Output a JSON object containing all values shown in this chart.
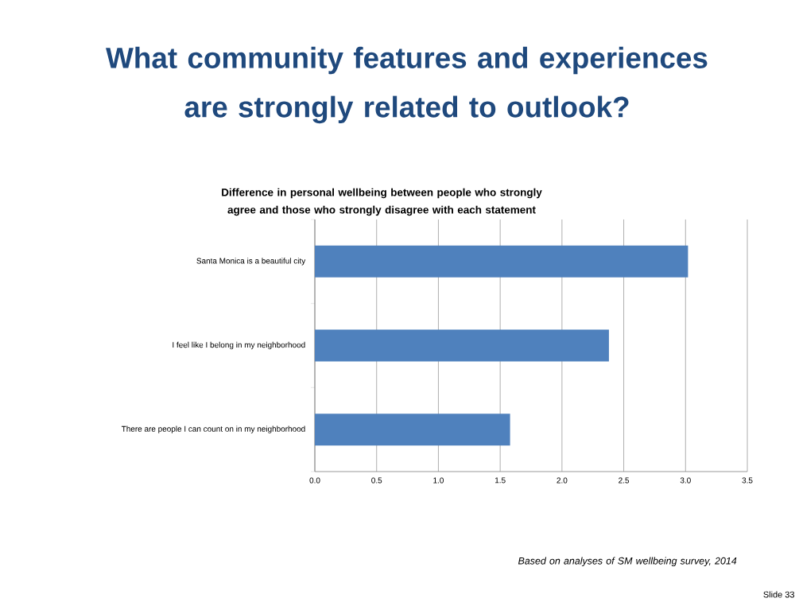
{
  "chart_data": {
    "type": "bar",
    "orientation": "horizontal",
    "title": "What community features and experiences are strongly related to outlook?",
    "subtitle": "Difference in personal wellbeing between people who strongly agree and those who strongly disagree with each statement",
    "categories": [
      "Santa Monica is a beautiful city",
      "I feel like I belong in my neighborhood",
      "There are people I can count on in my neighborhood"
    ],
    "values": [
      3.02,
      2.38,
      1.58
    ],
    "color": "#4f81bd",
    "xlim": [
      0,
      3.5
    ],
    "xticks": [
      {
        "value": 0,
        "label": "0.0"
      },
      {
        "value": 0.5,
        "label": "0.5"
      },
      {
        "value": 1,
        "label": "1.0"
      },
      {
        "value": 1.5,
        "label": "1.5"
      },
      {
        "value": 2,
        "label": "2.0"
      },
      {
        "value": 2.5,
        "label": "2.5"
      },
      {
        "value": 3,
        "label": "3.0"
      },
      {
        "value": 3.5,
        "label": "3.5"
      }
    ],
    "grid": "x",
    "annotations": [
      "*Based on analyses of SM wellbeing survey, 2014*",
      "Slide 33"
    ]
  }
}
